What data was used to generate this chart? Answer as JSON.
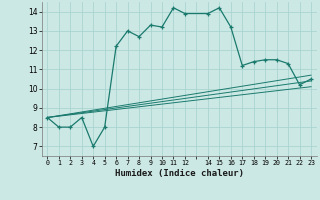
{
  "xlabel": "Humidex (Indice chaleur)",
  "background_color": "#cce8e4",
  "grid_color": "#aad4d0",
  "line_color": "#1a7a6e",
  "xlim": [
    -0.5,
    23.5
  ],
  "ylim": [
    6.5,
    14.5
  ],
  "xticks": [
    0,
    1,
    2,
    3,
    4,
    5,
    6,
    7,
    8,
    9,
    10,
    11,
    12,
    13,
    14,
    15,
    16,
    17,
    18,
    19,
    20,
    21,
    22,
    23
  ],
  "xtick_labels": [
    "0",
    "1",
    "2",
    "3",
    "4",
    "5",
    "6",
    "7",
    "8",
    "9",
    "10",
    "11",
    "12",
    "",
    "14",
    "15",
    "16",
    "17",
    "18",
    "19",
    "20",
    "21",
    "22",
    "23"
  ],
  "yticks": [
    7,
    8,
    9,
    10,
    11,
    12,
    13,
    14
  ],
  "main_x": [
    0,
    1,
    2,
    3,
    4,
    5,
    6,
    7,
    8,
    9,
    10,
    11,
    12,
    14,
    15,
    16,
    17,
    18,
    19,
    20,
    21,
    22,
    23
  ],
  "main_y": [
    8.5,
    8.0,
    8.0,
    8.5,
    7.0,
    8.0,
    12.2,
    13.0,
    12.7,
    13.3,
    13.2,
    14.2,
    13.9,
    13.9,
    14.2,
    13.2,
    11.2,
    11.4,
    11.5,
    11.5,
    11.3,
    10.2,
    10.5
  ],
  "line1_x": [
    0,
    23
  ],
  "line1_y": [
    8.5,
    10.1
  ],
  "line2_x": [
    0,
    23
  ],
  "line2_y": [
    8.5,
    10.4
  ],
  "line3_x": [
    0,
    23
  ],
  "line3_y": [
    8.5,
    10.7
  ]
}
